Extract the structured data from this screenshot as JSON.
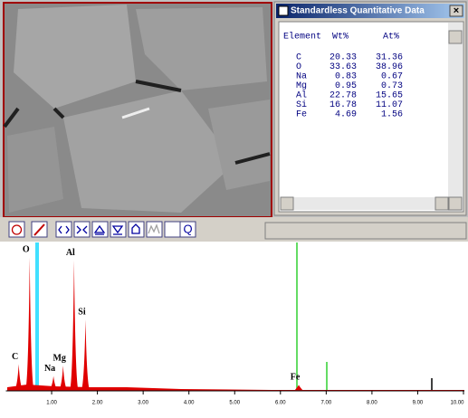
{
  "window": {
    "title": "Standardless Quantitative Data",
    "close": "×"
  },
  "table": {
    "header": [
      "Element",
      "Wt%",
      "At%"
    ],
    "rows": [
      [
        "C",
        20.33,
        31.36
      ],
      [
        "O",
        33.63,
        38.96
      ],
      [
        "Na",
        0.83,
        0.67
      ],
      [
        "Mg",
        0.95,
        0.73
      ],
      [
        "Al",
        22.78,
        15.65
      ],
      [
        "Si",
        16.78,
        11.07
      ],
      [
        "Fe",
        4.69,
        1.56
      ]
    ]
  },
  "toolbar": {
    "quant": "Q"
  },
  "spectrum": {
    "type": "spectrum",
    "color": "#e00000",
    "peaks": [
      {
        "label": "C",
        "energy": 0.28,
        "counts": 18
      },
      {
        "label": "O",
        "energy": 0.52,
        "counts": 90
      },
      {
        "label": "Na",
        "energy": 1.04,
        "counts": 10
      },
      {
        "label": "Mg",
        "energy": 1.25,
        "counts": 17
      },
      {
        "label": "Al",
        "energy": 1.49,
        "counts": 88
      },
      {
        "label": "Si",
        "energy": 1.74,
        "counts": 48
      },
      {
        "label": "Fe",
        "energy": 6.4,
        "counts": 4
      }
    ],
    "xlim": [
      0,
      10
    ],
    "ylim": [
      0,
      100
    ],
    "xticks": [
      {
        "value": 1,
        "label": "1.00"
      },
      {
        "value": 2,
        "label": "2.00"
      },
      {
        "value": 3,
        "label": "3.00"
      },
      {
        "value": 4,
        "label": "4.00"
      },
      {
        "value": 5,
        "label": "5.00"
      },
      {
        "value": 6,
        "label": "6.00"
      },
      {
        "value": 7,
        "label": "7.00"
      },
      {
        "value": 8,
        "label": "8.00"
      },
      {
        "value": 9,
        "label": "9.00"
      },
      {
        "value": 10,
        "label": "10.00"
      }
    ]
  }
}
